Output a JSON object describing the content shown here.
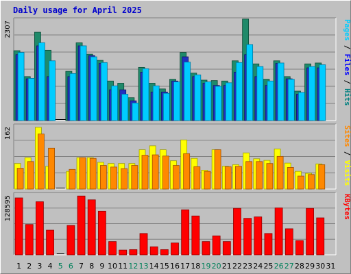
{
  "chart_data": {
    "type": "bar",
    "title": "Daily usage for April 2025",
    "categories": [
      "1",
      "2",
      "3",
      "4",
      "5",
      "6",
      "7",
      "8",
      "9",
      "10",
      "11",
      "12",
      "13",
      "14",
      "15",
      "16",
      "17",
      "18",
      "19",
      "20",
      "21",
      "22",
      "23",
      "24",
      "25",
      "26",
      "27",
      "28",
      "29",
      "30",
      "31"
    ],
    "weekend_days": [
      5,
      6,
      12,
      13,
      19,
      20,
      26,
      27
    ],
    "panels": [
      {
        "name": "top",
        "max_label": "2307",
        "ymax": 2307,
        "right_labels": [
          {
            "text": "Pages",
            "color": "#00ccff"
          },
          {
            "text": " / ",
            "color": "#000000"
          },
          {
            "text": "Files",
            "color": "#0000ff"
          },
          {
            "text": " / ",
            "color": "#000000"
          },
          {
            "text": "Hits",
            "color": "#008080"
          }
        ],
        "series": [
          {
            "name": "Hits",
            "color": "#1f8a6a",
            "values": [
              1590,
              1000,
              2010,
              1600,
              0,
              1120,
              1770,
              1510,
              1370,
              900,
              850,
              520,
              1210,
              850,
              720,
              940,
              1550,
              1080,
              920,
              910,
              900,
              1360,
              2310,
              1290,
              940,
              1360,
              1000,
              670,
              1290,
              1310,
              null
            ]
          },
          {
            "name": "Files",
            "color": "#2030c0",
            "values": [
              1500,
              950,
              1700,
              1000,
              0,
              1000,
              1700,
              1480,
              1300,
              700,
              700,
              450,
              1100,
              650,
              650,
              900,
              1450,
              1000,
              850,
              800,
              800,
              1100,
              1500,
              1000,
              800,
              1300,
              950,
              600,
              1200,
              1200,
              null
            ]
          },
          {
            "name": "Pages",
            "color": "#00ccff",
            "values": [
              1550,
              960,
              1770,
              1360,
              0,
              1070,
              1700,
              1450,
              1320,
              790,
              600,
              400,
              1180,
              790,
              620,
              880,
              1330,
              1040,
              880,
              780,
              860,
              1320,
              1730,
              1230,
              900,
              1310,
              940,
              640,
              1230,
              1270,
              null
            ]
          }
        ]
      },
      {
        "name": "middle",
        "max_label": "162",
        "ymax": 162,
        "right_labels": [
          {
            "text": "Sites",
            "color": "#ff8800"
          },
          {
            "text": " / ",
            "color": "#000000"
          },
          {
            "text": "Visits",
            "color": "#ffff00"
          }
        ],
        "series": [
          {
            "name": "Visits",
            "color": "#ffff00",
            "values": [
              65,
              80,
              157,
              58,
              0,
              45,
              80,
              80,
              68,
              65,
              65,
              65,
              100,
              110,
              100,
              72,
              125,
              78,
              48,
              100,
              58,
              62,
              92,
              77,
              73,
              102,
              66,
              45,
              40,
              64,
              null
            ]
          },
          {
            "name": "Sites",
            "color": "#ff8800",
            "values": [
              53,
              70,
              140,
              104,
              0,
              50,
              80,
              78,
              60,
              56,
              52,
              60,
              86,
              87,
              84,
              60,
              90,
              57,
              45,
              100,
              57,
              58,
              70,
              70,
              65,
              83,
              55,
              33,
              37,
              62,
              null
            ]
          }
        ]
      },
      {
        "name": "bottom",
        "max_label": "128595",
        "ymax": 128595,
        "right_labels": [
          {
            "text": "KBytes",
            "color": "#ff0000"
          }
        ],
        "series": [
          {
            "name": "KBytes",
            "color": "#ff0000",
            "values": [
              120000,
              64000,
              112000,
              52000,
              0,
              62000,
              124000,
              116000,
              92000,
              28000,
              10000,
              11000,
              45000,
              17000,
              11000,
              25000,
              95000,
              82000,
              28000,
              40000,
              28000,
              98000,
              77000,
              80000,
              45000,
              99000,
              55000,
              30000,
              98000,
              78000,
              null
            ]
          }
        ]
      }
    ]
  }
}
